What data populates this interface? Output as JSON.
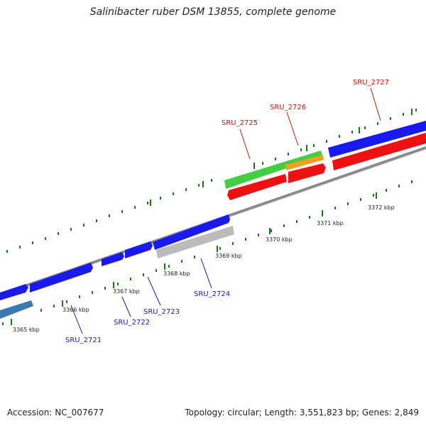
{
  "title": "Salinibacter ruber DSM 13855, complete genome",
  "footer": {
    "accession": "Accession: NC_007677",
    "summary": "Topology: circular; Length: 3,551,823 bp; Genes: 2,849"
  },
  "scale_labels": {
    "k3365": "3365 kbp",
    "k3366": "3366 kbp",
    "k3367": "3367 kbp",
    "k3368": "3368 kbp",
    "k3369": "3369 kbp",
    "k3370": "3370 kbp",
    "k3371": "3371 kbp",
    "k3372": "3372 kbp"
  },
  "gene_labels": {
    "sru2721": "SRU_2721",
    "sru2722": "SRU_2722",
    "sru2723": "SRU_2723",
    "sru2724": "SRU_2724",
    "sru2725": "SRU_2725",
    "sru2726": "SRU_2726",
    "sru2727": "SRU_2727"
  },
  "colors": {
    "forward_cds": "#1a1aee",
    "reverse_cds": "#ee1111",
    "backbone": "#888888",
    "tick": "#1a7a1a",
    "forward_label": "#1a1aaa",
    "reverse_label": "#cc1111",
    "green_feature": "#44cc44",
    "orange_feature": "#f0a020",
    "grey_feature": "#bbbbbb",
    "steel_feature": "#3a7ab0"
  }
}
